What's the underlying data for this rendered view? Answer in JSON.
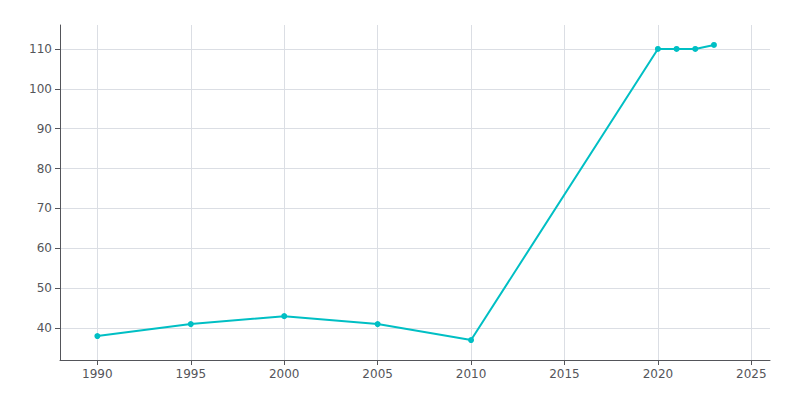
{
  "chart_data": {
    "type": "line",
    "x": [
      1990,
      1995,
      2000,
      2005,
      2010,
      2020,
      2021,
      2022,
      2023
    ],
    "values": [
      38,
      41,
      43,
      41,
      37,
      110,
      110,
      110,
      111
    ],
    "color": "#00BFC4",
    "marker": "circle",
    "xlim": [
      1988,
      2026
    ],
    "xticks": [
      1990,
      1995,
      2000,
      2005,
      2010,
      2015,
      2020,
      2025
    ],
    "ylim": [
      32,
      116
    ],
    "yticks": [
      40,
      50,
      60,
      70,
      80,
      90,
      100,
      110
    ],
    "grid": true
  }
}
